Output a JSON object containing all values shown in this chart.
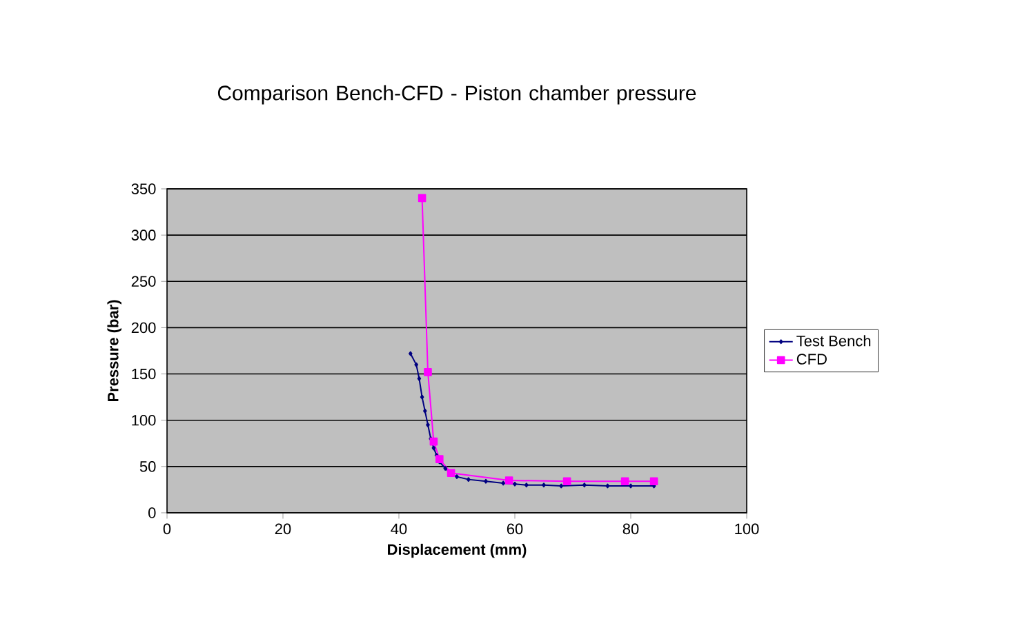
{
  "chart_data": {
    "type": "line",
    "title": "Comparison Bench-CFD - Piston chamber pressure",
    "xlabel": "Displacement (mm)",
    "ylabel": "Pressure (bar)",
    "xlim": [
      0,
      100
    ],
    "xticks": [
      0,
      20,
      40,
      60,
      80,
      100
    ],
    "ylim": [
      0,
      350
    ],
    "yticks": [
      0,
      50,
      100,
      150,
      200,
      250,
      300,
      350
    ],
    "grid": "y",
    "legend": "right",
    "series": [
      {
        "name": "Test Bench",
        "color": "#000080",
        "marker": "diamond",
        "x": [
          42,
          43,
          43.5,
          44,
          44.5,
          45,
          45.5,
          46,
          46.5,
          47,
          48,
          49,
          50,
          52,
          55,
          58,
          60,
          62,
          65,
          68,
          72,
          76,
          80,
          84
        ],
        "values": [
          172,
          160,
          145,
          125,
          110,
          95,
          80,
          70,
          62,
          55,
          48,
          42,
          39,
          36,
          34,
          32,
          31,
          30,
          30,
          29,
          30,
          29,
          29,
          29
        ]
      },
      {
        "name": "CFD",
        "color": "#ff00ff",
        "marker": "square",
        "x": [
          44,
          45,
          46,
          47,
          49,
          59,
          69,
          79,
          84
        ],
        "values": [
          340,
          152,
          77,
          58,
          43,
          35,
          34,
          34,
          34
        ]
      }
    ]
  }
}
